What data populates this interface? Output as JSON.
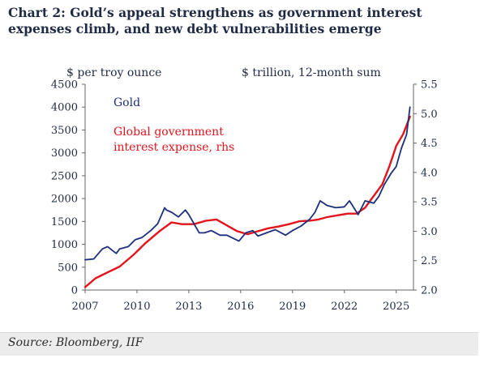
{
  "title": {
    "line1": "Chart 2: Gold’s appeal strengthens as government interest",
    "line2": "expenses climb, and new debt vulnerabilities emerge"
  },
  "source": "Source: Bloomberg, IIF",
  "chart_data": {
    "type": "line",
    "left_axis_unit": "$ per troy ounce",
    "right_axis_unit": "$ trillion, 12-month sum",
    "x_ticks": [
      "2007",
      "2010",
      "2013",
      "2016",
      "2019",
      "2022",
      "2025"
    ],
    "x_range": [
      2007,
      2026
    ],
    "y_left_range": [
      0,
      4500
    ],
    "y_left_ticks": [
      "0",
      "500",
      "1000",
      "1500",
      "2000",
      "2500",
      "3000",
      "3500",
      "4000",
      "4500"
    ],
    "y_right_range": [
      2.0,
      5.5
    ],
    "y_right_ticks": [
      "2.0",
      "2.5",
      "3.0",
      "3.5",
      "4.0",
      "4.5",
      "5.0",
      "5.5"
    ],
    "grid": false,
    "colors": {
      "gold": "#1c2f7a",
      "interest": "#e2141c"
    },
    "series": [
      {
        "name": "Gold",
        "axis": "left",
        "x": [
          2007.0,
          2007.5,
          2008.0,
          2008.3,
          2008.8,
          2009.0,
          2009.5,
          2009.9,
          2010.3,
          2010.8,
          2011.2,
          2011.6,
          2011.7,
          2012.0,
          2012.4,
          2012.8,
          2013.0,
          2013.3,
          2013.6,
          2013.9,
          2014.3,
          2014.8,
          2015.2,
          2015.9,
          2016.3,
          2016.7,
          2017.0,
          2017.5,
          2018.0,
          2018.6,
          2019.0,
          2019.5,
          2020.0,
          2020.3,
          2020.6,
          2021.0,
          2021.5,
          2022.0,
          2022.3,
          2022.8,
          2023.2,
          2023.7,
          2024.0,
          2024.3,
          2024.7,
          2025.0,
          2025.3,
          2025.6,
          2025.8
        ],
        "values": [
          660,
          680,
          900,
          950,
          800,
          900,
          950,
          1100,
          1150,
          1300,
          1450,
          1800,
          1750,
          1700,
          1600,
          1750,
          1650,
          1450,
          1250,
          1250,
          1300,
          1200,
          1200,
          1070,
          1250,
          1300,
          1180,
          1250,
          1320,
          1200,
          1300,
          1400,
          1550,
          1700,
          1950,
          1850,
          1800,
          1820,
          1950,
          1650,
          1950,
          1900,
          2050,
          2300,
          2550,
          2700,
          3100,
          3400,
          4000
        ]
      },
      {
        "name": "Global government interest expense, rhs",
        "axis": "right",
        "x": [
          2007.0,
          2007.6,
          2008.3,
          2009.0,
          2009.8,
          2010.5,
          2011.3,
          2012.0,
          2012.6,
          2013.3,
          2014.0,
          2014.6,
          2015.2,
          2015.8,
          2016.4,
          2017.0,
          2017.6,
          2018.2,
          2018.8,
          2019.4,
          2020.0,
          2020.5,
          2021.0,
          2021.6,
          2022.2,
          2022.7,
          2023.2,
          2023.7,
          2024.2,
          2024.6,
          2025.0,
          2025.4,
          2025.8
        ],
        "values": [
          2.05,
          2.2,
          2.3,
          2.4,
          2.6,
          2.8,
          3.0,
          3.15,
          3.12,
          3.12,
          3.18,
          3.2,
          3.1,
          3.0,
          2.95,
          3.0,
          3.05,
          3.08,
          3.12,
          3.17,
          3.18,
          3.2,
          3.24,
          3.27,
          3.3,
          3.3,
          3.4,
          3.6,
          3.8,
          4.1,
          4.45,
          4.65,
          4.95
        ]
      }
    ],
    "annotations": {
      "gold_label": "Gold",
      "interest_label_line1": "Global government",
      "interest_label_line2": "interest expense, rhs"
    }
  }
}
